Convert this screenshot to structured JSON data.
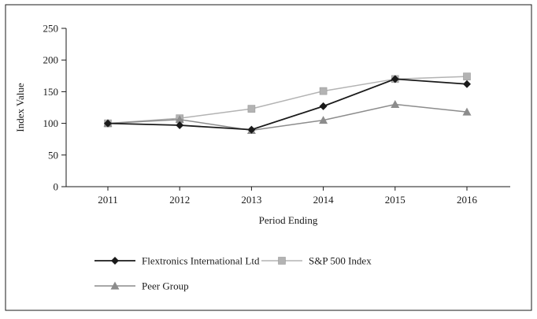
{
  "chart_data": {
    "type": "line",
    "x": [
      "2011",
      "2012",
      "2013",
      "2014",
      "2015",
      "2016"
    ],
    "series": [
      {
        "name": "Flextronics International Ltd",
        "values": [
          100,
          97,
          90,
          127,
          170,
          162
        ],
        "color": "#1a1a1a",
        "marker": "diamond"
      },
      {
        "name": "S&P 500 Index",
        "values": [
          100,
          108,
          123,
          151,
          170,
          174
        ],
        "color": "#b3b3b3",
        "marker": "square"
      },
      {
        "name": "Peer Group",
        "values": [
          100,
          106,
          89,
          105,
          130,
          118
        ],
        "color": "#8c8c8c",
        "marker": "triangle"
      }
    ],
    "title": "",
    "xlabel": "Period Ending",
    "ylabel": "Index Value",
    "ylim": [
      0,
      250
    ],
    "yticks": [
      0,
      50,
      100,
      150,
      200,
      250
    ],
    "grid": false,
    "legend_position": "bottom"
  }
}
